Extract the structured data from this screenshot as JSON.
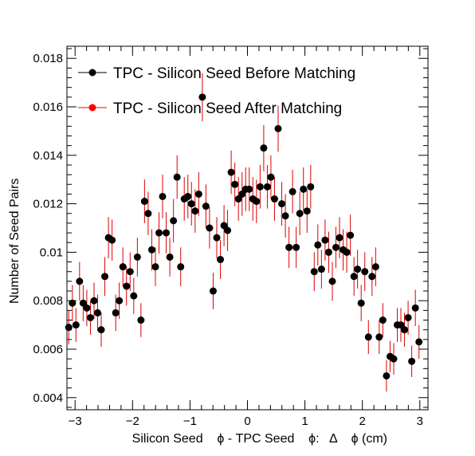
{
  "chart_data": {
    "type": "scatter",
    "title": "",
    "xlabel": "Silicon Seed    ϕ - TPC Seed    ϕ:   Δ    ϕ (cm)",
    "ylabel": "Number of Seed Pairs",
    "xlim": [
      -3.1416,
      3.1416
    ],
    "ylim": [
      0.0035,
      0.0185
    ],
    "x_ticks": [
      -3,
      -2,
      -1,
      0,
      1,
      2,
      3
    ],
    "x_tick_labels": [
      "−3",
      "−2",
      "−1",
      "0",
      "1",
      "2",
      "3"
    ],
    "y_ticks": [
      0.004,
      0.006,
      0.008,
      0.01,
      0.012,
      0.014,
      0.016,
      0.018
    ],
    "y_tick_labels": [
      "0.004",
      "0.006",
      "0.008",
      "0.01",
      "0.012",
      "0.014",
      "0.016",
      "0.018"
    ],
    "grid": false,
    "legend_position": "top-left",
    "error_bar_color": "#dd0000",
    "series": [
      {
        "name": "TPC - Silicon Seed Before Matching",
        "marker_color": "#000000",
        "line_color": "#000000"
      },
      {
        "name": "TPC - Silicon Seed After Matching",
        "marker_color": "#ff0000",
        "line_color": "#ff0000"
      }
    ],
    "points": [
      [
        -3.11,
        0.0069,
        0.0007
      ],
      [
        -3.047,
        0.0079,
        0.00075
      ],
      [
        -2.985,
        0.007,
        0.0007
      ],
      [
        -2.922,
        0.0088,
        0.0008
      ],
      [
        -2.859,
        0.0079,
        0.00075
      ],
      [
        -2.796,
        0.0077,
        0.00075
      ],
      [
        -2.733,
        0.0073,
        0.0007
      ],
      [
        -2.67,
        0.008,
        0.00075
      ],
      [
        -2.608,
        0.0075,
        0.00075
      ],
      [
        -2.545,
        0.0068,
        0.0007
      ],
      [
        -2.482,
        0.009,
        0.0008
      ],
      [
        -2.419,
        0.0106,
        0.00085
      ],
      [
        -2.356,
        0.0105,
        0.00085
      ],
      [
        -2.293,
        0.0075,
        0.00075
      ],
      [
        -2.231,
        0.008,
        0.00075
      ],
      [
        -2.168,
        0.0094,
        0.0008
      ],
      [
        -2.105,
        0.0086,
        0.0008
      ],
      [
        -2.042,
        0.0092,
        0.0008
      ],
      [
        -1.979,
        0.0082,
        0.00075
      ],
      [
        -1.916,
        0.0098,
        0.0008
      ],
      [
        -1.854,
        0.0072,
        0.0007
      ],
      [
        -1.791,
        0.0121,
        0.0009
      ],
      [
        -1.728,
        0.0116,
        0.0009
      ],
      [
        -1.665,
        0.0101,
        0.00085
      ],
      [
        -1.602,
        0.0094,
        0.0008
      ],
      [
        -1.539,
        0.0108,
        0.00085
      ],
      [
        -1.477,
        0.0123,
        0.0009
      ],
      [
        -1.414,
        0.0108,
        0.00085
      ],
      [
        -1.351,
        0.0098,
        0.0008
      ],
      [
        -1.288,
        0.0113,
        0.0009
      ],
      [
        -1.225,
        0.0131,
        0.0009
      ],
      [
        -1.162,
        0.0094,
        0.0008
      ],
      [
        -1.1,
        0.0122,
        0.0009
      ],
      [
        -1.037,
        0.0123,
        0.0009
      ],
      [
        -0.974,
        0.012,
        0.0009
      ],
      [
        -0.911,
        0.0117,
        0.0009
      ],
      [
        -0.848,
        0.0124,
        0.0009
      ],
      [
        -0.785,
        0.0164,
        0.001
      ],
      [
        -0.723,
        0.0119,
        0.0009
      ],
      [
        -0.66,
        0.011,
        0.00085
      ],
      [
        -0.597,
        0.0084,
        0.00075
      ],
      [
        -0.534,
        0.0106,
        0.00085
      ],
      [
        -0.471,
        0.0097,
        0.0008
      ],
      [
        -0.408,
        0.0111,
        0.00085
      ],
      [
        -0.346,
        0.0109,
        0.00085
      ],
      [
        -0.283,
        0.0133,
        0.0009
      ],
      [
        -0.22,
        0.0128,
        0.0009
      ],
      [
        -0.157,
        0.0122,
        0.0009
      ],
      [
        -0.094,
        0.0124,
        0.0009
      ],
      [
        -0.031,
        0.0126,
        0.0009
      ],
      [
        0.031,
        0.0126,
        0.0009
      ],
      [
        0.094,
        0.0122,
        0.0009
      ],
      [
        0.157,
        0.0121,
        0.0009
      ],
      [
        0.22,
        0.0127,
        0.0009
      ],
      [
        0.283,
        0.0143,
        0.00095
      ],
      [
        0.346,
        0.0127,
        0.0009
      ],
      [
        0.408,
        0.0131,
        0.0009
      ],
      [
        0.471,
        0.0122,
        0.0009
      ],
      [
        0.534,
        0.0151,
        0.00095
      ],
      [
        0.597,
        0.012,
        0.0009
      ],
      [
        0.66,
        0.0115,
        0.0009
      ],
      [
        0.723,
        0.0102,
        0.00085
      ],
      [
        0.785,
        0.0125,
        0.0009
      ],
      [
        0.848,
        0.0102,
        0.00085
      ],
      [
        0.911,
        0.0116,
        0.0009
      ],
      [
        0.974,
        0.0126,
        0.0009
      ],
      [
        1.037,
        0.0117,
        0.0009
      ],
      [
        1.1,
        0.0127,
        0.0009
      ],
      [
        1.162,
        0.0092,
        0.0008
      ],
      [
        1.225,
        0.0103,
        0.00085
      ],
      [
        1.288,
        0.0093,
        0.0008
      ],
      [
        1.351,
        0.0105,
        0.00085
      ],
      [
        1.414,
        0.01,
        0.00085
      ],
      [
        1.477,
        0.0088,
        0.0008
      ],
      [
        1.539,
        0.0102,
        0.00085
      ],
      [
        1.602,
        0.0106,
        0.00085
      ],
      [
        1.665,
        0.0101,
        0.00085
      ],
      [
        1.728,
        0.01,
        0.00085
      ],
      [
        1.791,
        0.0107,
        0.00085
      ],
      [
        1.854,
        0.009,
        0.0008
      ],
      [
        1.916,
        0.0093,
        0.0008
      ],
      [
        1.979,
        0.0079,
        0.00075
      ],
      [
        2.042,
        0.0092,
        0.0008
      ],
      [
        2.105,
        0.0065,
        0.0007
      ],
      [
        2.168,
        0.009,
        0.0008
      ],
      [
        2.231,
        0.0094,
        0.0008
      ],
      [
        2.293,
        0.0065,
        0.0007
      ],
      [
        2.356,
        0.0072,
        0.0007
      ],
      [
        2.419,
        0.0049,
        0.00065
      ],
      [
        2.482,
        0.0057,
        0.00065
      ],
      [
        2.545,
        0.0056,
        0.00065
      ],
      [
        2.608,
        0.007,
        0.0007
      ],
      [
        2.67,
        0.007,
        0.0007
      ],
      [
        2.733,
        0.0068,
        0.0007
      ],
      [
        2.796,
        0.0073,
        0.0007
      ],
      [
        2.859,
        0.0055,
        0.00065
      ],
      [
        2.922,
        0.0077,
        0.00075
      ],
      [
        2.985,
        0.0063,
        0.0007
      ]
    ]
  }
}
